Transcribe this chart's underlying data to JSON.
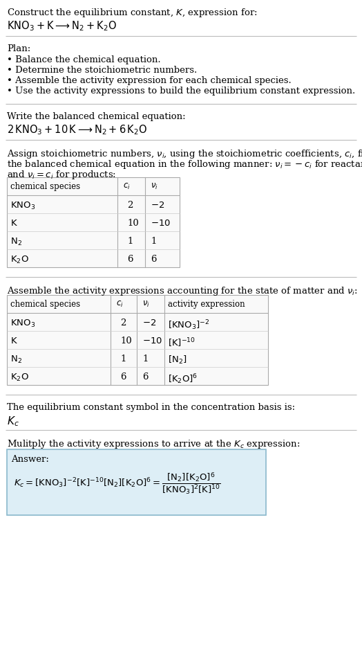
{
  "title_line1": "Construct the equilibrium constant, $K$, expression for:",
  "title_line2": "$\\mathrm{KNO_3 + K \\longrightarrow N_2 + K_2O}$",
  "plan_header": "Plan:",
  "plan_bullets": [
    "• Balance the chemical equation.",
    "• Determine the stoichiometric numbers.",
    "• Assemble the activity expression for each chemical species.",
    "• Use the activity expressions to build the equilibrium constant expression."
  ],
  "balanced_header": "Write the balanced chemical equation:",
  "balanced_eq": "$\\mathrm{2\\,KNO_3 + 10\\,K \\longrightarrow N_2 + 6\\,K_2O}$",
  "stoich_intro1": "Assign stoichiometric numbers, $\\nu_i$, using the stoichiometric coefficients, $c_i$, from",
  "stoich_intro2": "the balanced chemical equation in the following manner: $\\nu_i = -c_i$ for reactants",
  "stoich_intro3": "and $\\nu_i = c_i$ for products:",
  "table1_headers": [
    "chemical species",
    "$c_i$",
    "$\\nu_i$"
  ],
  "table1_rows": [
    [
      "$\\mathrm{KNO_3}$",
      "2",
      "$-2$"
    ],
    [
      "$\\mathrm{K}$",
      "10",
      "$-10$"
    ],
    [
      "$\\mathrm{N_2}$",
      "1",
      "1"
    ],
    [
      "$\\mathrm{K_2O}$",
      "6",
      "6"
    ]
  ],
  "activity_intro": "Assemble the activity expressions accounting for the state of matter and $\\nu_i$:",
  "table2_headers": [
    "chemical species",
    "$c_i$",
    "$\\nu_i$",
    "activity expression"
  ],
  "table2_rows": [
    [
      "$\\mathrm{KNO_3}$",
      "2",
      "$-2$",
      "$[\\mathrm{KNO_3}]^{-2}$"
    ],
    [
      "$\\mathrm{K}$",
      "10",
      "$-10$",
      "$[\\mathrm{K}]^{-10}$"
    ],
    [
      "$\\mathrm{N_2}$",
      "1",
      "1",
      "$[\\mathrm{N_2}]$"
    ],
    [
      "$\\mathrm{K_2O}$",
      "6",
      "6",
      "$[\\mathrm{K_2O}]^6$"
    ]
  ],
  "kc_intro": "The equilibrium constant symbol in the concentration basis is:",
  "kc_symbol": "$K_c$",
  "multiply_intro": "Mulitply the activity expressions to arrive at the $K_c$ expression:",
  "answer_label": "Answer:",
  "bg_color": "#ffffff",
  "answer_bg": "#ddeef6",
  "answer_border": "#8ab8cc",
  "sep_color": "#bbbbbb",
  "table_border": "#aaaaaa",
  "table_row_sep": "#cccccc",
  "table_bg": "#f9f9f9"
}
